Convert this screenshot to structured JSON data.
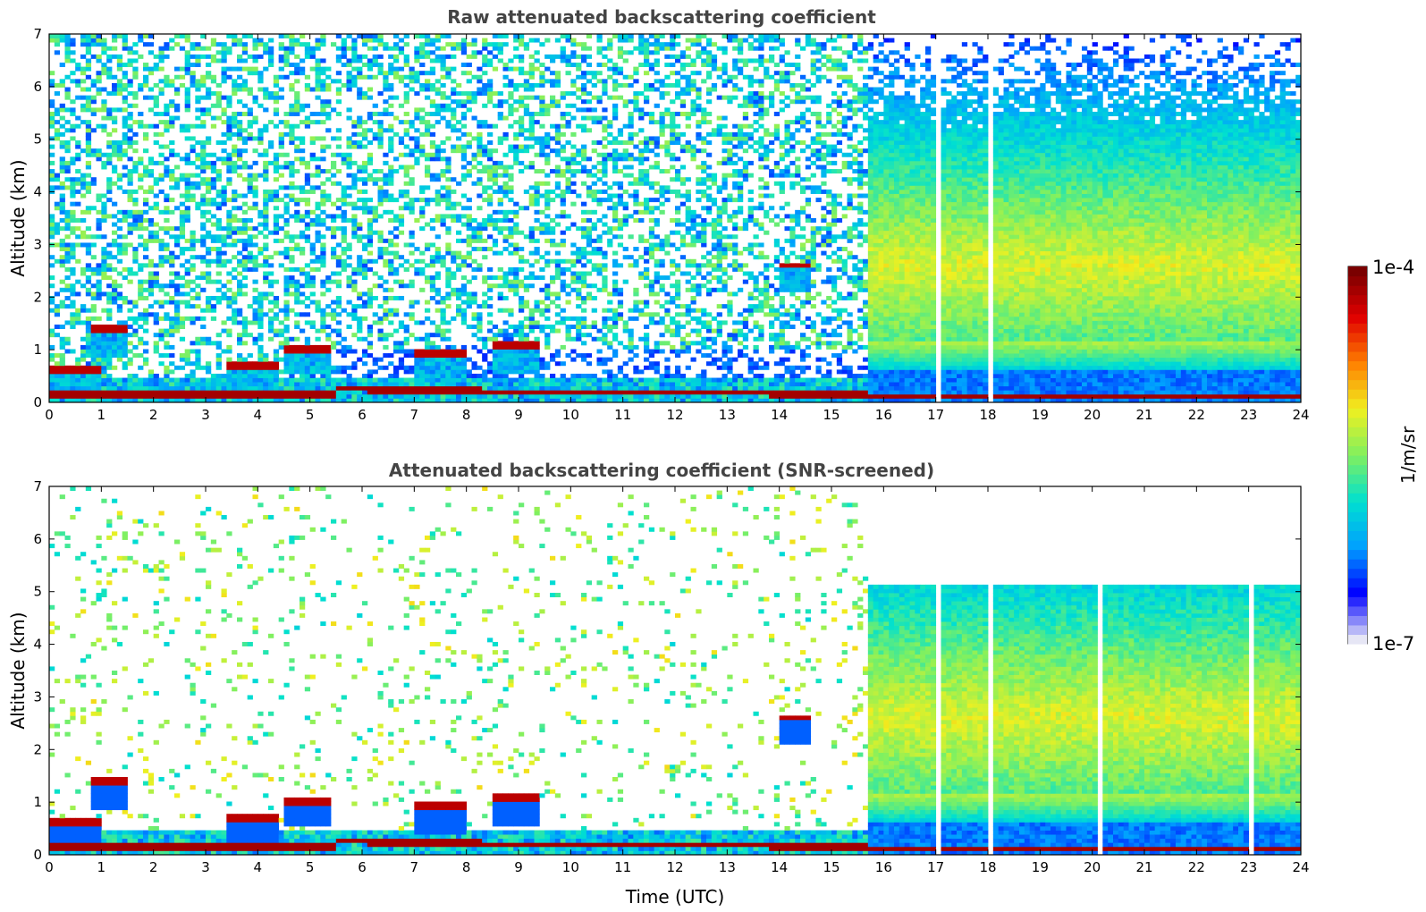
{
  "chart_data": [
    {
      "type": "heatmap",
      "title": "Raw attenuated backscattering coefficient",
      "xlabel": "",
      "ylabel": "Altitude (km)",
      "xlim": [
        0,
        24
      ],
      "ylim": [
        0,
        7
      ],
      "xticks": [
        "0",
        "1",
        "2",
        "3",
        "4",
        "5",
        "6",
        "7",
        "8",
        "9",
        "10",
        "11",
        "12",
        "13",
        "14",
        "15",
        "16",
        "17",
        "18",
        "19",
        "20",
        "21",
        "22",
        "23",
        "24"
      ],
      "yticks": [
        "0",
        "1",
        "2",
        "3",
        "4",
        "5",
        "6",
        "7"
      ],
      "screened": false,
      "features": {
        "noise_to_7km_until_hour": 15.7,
        "high_signal_from_hour": 15.7,
        "surface_layer_altitude_km": [
          0.25,
          0.12
        ],
        "elevated_layers": [
          {
            "start": 0.0,
            "end": 1.0,
            "alt": 0.62
          },
          {
            "start": 0.8,
            "end": 1.5,
            "alt": 1.38
          },
          {
            "start": 3.4,
            "end": 4.4,
            "alt": 0.72
          },
          {
            "start": 4.5,
            "end": 5.4,
            "alt": 1.02
          },
          {
            "start": 7.0,
            "end": 8.0,
            "alt": 0.92
          },
          {
            "start": 8.5,
            "end": 9.4,
            "alt": 1.08
          },
          {
            "start": 14.0,
            "end": 14.6,
            "alt": 2.6
          }
        ],
        "gap_hours": [
          17.05,
          18.07
        ]
      }
    },
    {
      "type": "heatmap",
      "title": "Attenuated backscattering coefficient (SNR-screened)",
      "xlabel": "Time (UTC)",
      "ylabel": "Altitude (km)",
      "xlim": [
        0,
        24
      ],
      "ylim": [
        0,
        7
      ],
      "xticks": [
        "0",
        "1",
        "2",
        "3",
        "4",
        "5",
        "6",
        "7",
        "8",
        "9",
        "10",
        "11",
        "12",
        "13",
        "14",
        "15",
        "16",
        "17",
        "18",
        "19",
        "20",
        "21",
        "22",
        "23",
        "24"
      ],
      "yticks": [
        "0",
        "1",
        "2",
        "3",
        "4",
        "5",
        "6",
        "7"
      ],
      "screened": true,
      "features": {
        "noise_to_7km_until_hour": 15.7,
        "high_signal_from_hour": 15.7,
        "signal_top_km": 5.1,
        "gap_hours": [
          17.05,
          18.07,
          20.15,
          23.05
        ]
      }
    }
  ],
  "colorbar": {
    "max_label": "1e-4",
    "min_label": "1e-7",
    "unit_label": "1/m/sr",
    "scale": "log",
    "colormap": [
      "#e6e6f5",
      "#0000ff",
      "#00a0ff",
      "#00e0d0",
      "#80f060",
      "#f0f020",
      "#ff8000",
      "#e00000",
      "#7a0000"
    ]
  }
}
